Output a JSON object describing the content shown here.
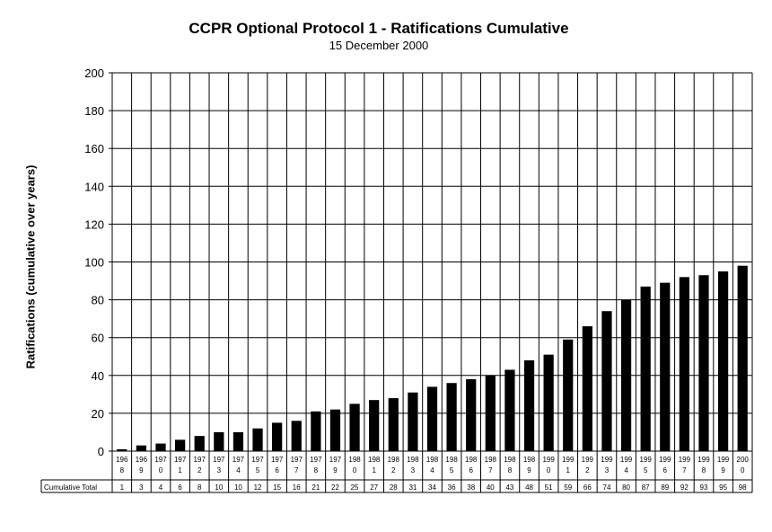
{
  "chart_data": {
    "type": "bar",
    "title": "CCPR Optional Protocol 1 - Ratifications Cumulative",
    "subtitle": "15 December 2000",
    "ylabel": "Ratifications (cumulative over years)",
    "xlabel": "",
    "ylim": [
      0,
      200
    ],
    "yticks": [
      0,
      20,
      40,
      60,
      80,
      100,
      120,
      140,
      160,
      180,
      200
    ],
    "grid": true,
    "table_row_label": "Cumulative Total",
    "categories": [
      "1968",
      "1969",
      "1970",
      "1971",
      "1972",
      "1973",
      "1974",
      "1975",
      "1976",
      "1977",
      "1978",
      "1979",
      "1980",
      "1981",
      "1982",
      "1983",
      "1984",
      "1985",
      "1986",
      "1987",
      "1988",
      "1989",
      "1990",
      "1991",
      "1992",
      "1993",
      "1994",
      "1995",
      "1996",
      "1997",
      "1998",
      "1999",
      "2000"
    ],
    "category_lines": [
      [
        "196",
        "8"
      ],
      [
        "196",
        "9"
      ],
      [
        "197",
        "0"
      ],
      [
        "197",
        "1"
      ],
      [
        "197",
        "2"
      ],
      [
        "197",
        "3"
      ],
      [
        "197",
        "4"
      ],
      [
        "197",
        "5"
      ],
      [
        "197",
        "6"
      ],
      [
        "197",
        "7"
      ],
      [
        "197",
        "8"
      ],
      [
        "197",
        "9"
      ],
      [
        "198",
        "0"
      ],
      [
        "198",
        "1"
      ],
      [
        "198",
        "2"
      ],
      [
        "198",
        "3"
      ],
      [
        "198",
        "4"
      ],
      [
        "198",
        "5"
      ],
      [
        "198",
        "6"
      ],
      [
        "198",
        "7"
      ],
      [
        "198",
        "8"
      ],
      [
        "198",
        "9"
      ],
      [
        "199",
        "0"
      ],
      [
        "199",
        "1"
      ],
      [
        "199",
        "2"
      ],
      [
        "199",
        "3"
      ],
      [
        "199",
        "4"
      ],
      [
        "199",
        "5"
      ],
      [
        "199",
        "6"
      ],
      [
        "199",
        "7"
      ],
      [
        "199",
        "8"
      ],
      [
        "199",
        "9"
      ],
      [
        "200",
        "0"
      ]
    ],
    "values": [
      1,
      3,
      4,
      6,
      8,
      10,
      10,
      12,
      15,
      16,
      21,
      22,
      25,
      27,
      28,
      31,
      34,
      36,
      38,
      40,
      43,
      48,
      51,
      59,
      66,
      74,
      80,
      87,
      89,
      92,
      93,
      95,
      98
    ],
    "bar_color": "#000000"
  }
}
